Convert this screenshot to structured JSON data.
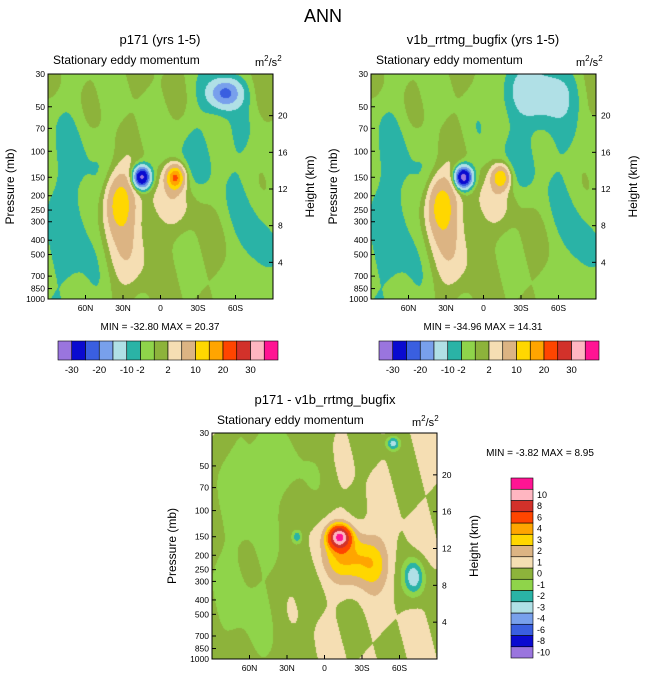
{
  "title": "ANN",
  "units": {
    "base": "m",
    "exp": "2",
    "den": "/s",
    "den_exp": "2"
  },
  "chart_data": [
    {
      "type": "heatmap",
      "title": "p171 (yrs 1-5)",
      "subtitle": "Stationary eddy momentum",
      "ylabel": "Pressure (mb)",
      "ylabel_right": "Height (km)",
      "y_ticks": [
        30,
        50,
        70,
        100,
        150,
        200,
        250,
        300,
        400,
        500,
        700,
        850,
        1000
      ],
      "y_tick_labels": [
        "30",
        "50",
        "70",
        "100",
        "150",
        "200",
        "250",
        "300",
        "400",
        "500",
        "700",
        "850",
        "1000"
      ],
      "height_ticks": [
        4,
        8,
        12,
        16,
        20
      ],
      "x_ticks": [
        60,
        30,
        0,
        -30,
        -60
      ],
      "x_tick_labels": [
        "60N",
        "30N",
        "0",
        "30S",
        "60S"
      ],
      "xlim": [
        90,
        -90
      ],
      "ylim": [
        1000,
        30
      ],
      "min_label": "MIN = -32.80",
      "max_label": "MAX =  20.37",
      "levels": [
        -30,
        -20,
        -15,
        -10,
        -5,
        -2,
        0,
        2,
        5,
        10,
        15,
        20,
        25,
        30
      ],
      "level_labels": [
        "-30",
        "-20",
        "-10",
        "-2",
        "2",
        "10",
        "20",
        "30"
      ],
      "colors": [
        "#9a75de",
        "#0a0ad0",
        "#3a5fe0",
        "#78a0ec",
        "#b0e0e6",
        "#2ab3a6",
        "#8fd44a",
        "#8db33b",
        "#f5deb3",
        "#dcb483",
        "#ffd700",
        "#ffa500",
        "#ff4500",
        "#d2312a",
        "#ffb6c1",
        "#ff1493"
      ],
      "features": [
        {
          "lat": -12,
          "p": 150,
          "value": 20.4,
          "sx": 5,
          "sy": 0.13
        },
        {
          "lat": -8,
          "p": 220,
          "value": 3.5,
          "sx": 16,
          "sy": 0.28
        },
        {
          "lat": 15,
          "p": 150,
          "value": -32.8,
          "sx": 4.5,
          "sy": 0.11
        },
        {
          "lat": 33,
          "p": 220,
          "value": 13,
          "sx": 8,
          "sy": 0.32
        },
        {
          "lat": 28,
          "p": 450,
          "value": 4,
          "sx": 14,
          "sy": 0.5
        },
        {
          "lat": -52,
          "p": 40,
          "value": -16,
          "sx": 9,
          "sy": 0.16
        },
        {
          "lat": 70,
          "p": 300,
          "value": -3.5,
          "sx": 18,
          "sy": 1.2
        },
        {
          "lat": -40,
          "p": 100,
          "value": -2.5,
          "sx": 25,
          "sy": 0.6
        },
        {
          "lat": -75,
          "p": 500,
          "value": -3,
          "sx": 10,
          "sy": 0.8
        }
      ]
    },
    {
      "type": "heatmap",
      "title": "v1b_rrtmg_bugfix (yrs 1-5)",
      "subtitle": "Stationary eddy momentum",
      "ylabel": "Pressure (mb)",
      "ylabel_right": "Height (km)",
      "y_ticks": [
        30,
        50,
        70,
        100,
        150,
        200,
        250,
        300,
        400,
        500,
        700,
        850,
        1000
      ],
      "y_tick_labels": [
        "30",
        "50",
        "70",
        "100",
        "150",
        "200",
        "250",
        "300",
        "400",
        "500",
        "700",
        "850",
        "1000"
      ],
      "height_ticks": [
        4,
        8,
        12,
        16,
        20
      ],
      "x_ticks": [
        60,
        30,
        0,
        -30,
        -60
      ],
      "x_tick_labels": [
        "60N",
        "30N",
        "0",
        "30S",
        "60S"
      ],
      "xlim": [
        90,
        -90
      ],
      "ylim": [
        1000,
        30
      ],
      "min_label": "MIN = -34.96",
      "max_label": "MAX =  14.31",
      "levels": [
        -30,
        -20,
        -15,
        -10,
        -5,
        -2,
        0,
        2,
        5,
        10,
        15,
        20,
        25,
        30
      ],
      "level_labels": [
        "-30",
        "-20",
        "-10",
        "-2",
        "2",
        "10",
        "20",
        "30"
      ],
      "colors": [
        "#9a75de",
        "#0a0ad0",
        "#3a5fe0",
        "#78a0ec",
        "#b0e0e6",
        "#2ab3a6",
        "#8fd44a",
        "#8db33b",
        "#f5deb3",
        "#dcb483",
        "#ffd700",
        "#ffa500",
        "#ff4500",
        "#d2312a",
        "#ffb6c1",
        "#ff1493"
      ],
      "features": [
        {
          "lat": -14,
          "p": 150,
          "value": 14.3,
          "sx": 5,
          "sy": 0.13
        },
        {
          "lat": -8,
          "p": 220,
          "value": 3,
          "sx": 14,
          "sy": 0.28
        },
        {
          "lat": 16,
          "p": 150,
          "value": -35,
          "sx": 4.5,
          "sy": 0.11
        },
        {
          "lat": 34,
          "p": 230,
          "value": 13,
          "sx": 8,
          "sy": 0.32
        },
        {
          "lat": 28,
          "p": 450,
          "value": 4,
          "sx": 14,
          "sy": 0.5
        },
        {
          "lat": -45,
          "p": 40,
          "value": -8,
          "sx": 20,
          "sy": 0.3
        },
        {
          "lat": 70,
          "p": 300,
          "value": -3.5,
          "sx": 18,
          "sy": 1.2
        },
        {
          "lat": -40,
          "p": 100,
          "value": -2.5,
          "sx": 25,
          "sy": 0.6
        },
        {
          "lat": -75,
          "p": 500,
          "value": -3,
          "sx": 10,
          "sy": 0.8
        }
      ]
    },
    {
      "type": "heatmap",
      "title": "p171 - v1b_rrtmg_bugfix",
      "subtitle": "Stationary eddy momentum",
      "ylabel": "Pressure (mb)",
      "ylabel_right": "Height (km)",
      "y_ticks": [
        30,
        50,
        70,
        100,
        150,
        200,
        250,
        300,
        400,
        500,
        700,
        850,
        1000
      ],
      "y_tick_labels": [
        "30",
        "50",
        "70",
        "100",
        "150",
        "200",
        "250",
        "300",
        "400",
        "500",
        "700",
        "850",
        "1000"
      ],
      "height_ticks": [
        4,
        8,
        12,
        16,
        20
      ],
      "x_ticks": [
        60,
        30,
        0,
        -30,
        -60
      ],
      "x_tick_labels": [
        "60N",
        "30N",
        "0",
        "30S",
        "60S"
      ],
      "xlim": [
        90,
        -90
      ],
      "ylim": [
        1000,
        30
      ],
      "min_label": "MIN =  -3.82",
      "max_label": "MAX =   8.95",
      "levels": [
        -10,
        -8,
        -6,
        -4,
        -3,
        -2,
        -1,
        0,
        1,
        2,
        3,
        4,
        6,
        8,
        10
      ],
      "level_labels": [
        "-10",
        "-8",
        "-6",
        "-4",
        "-3",
        "-2",
        "-1",
        "0",
        "1",
        "2",
        "3",
        "4",
        "6",
        "8",
        "10"
      ],
      "colors": [
        "#9a75de",
        "#0a0ad0",
        "#3a5fe0",
        "#78a0ec",
        "#b0e0e6",
        "#2ab3a6",
        "#8fd44a",
        "#8db33b",
        "#f5deb3",
        "#dcb483",
        "#ffd700",
        "#ffa500",
        "#ff4500",
        "#d2312a",
        "#ffb6c1",
        "#ff1493"
      ],
      "features": [
        {
          "lat": -12,
          "p": 150,
          "value": 9,
          "sx": 6,
          "sy": 0.12
        },
        {
          "lat": -18,
          "p": 200,
          "value": 3,
          "sx": 14,
          "sy": 0.3
        },
        {
          "lat": -40,
          "p": 230,
          "value": 2,
          "sx": 10,
          "sy": 0.28
        },
        {
          "lat": 22,
          "p": 150,
          "value": -2.6,
          "sx": 3,
          "sy": 0.08
        },
        {
          "lat": -72,
          "p": 280,
          "value": -3.8,
          "sx": 6,
          "sy": 0.2
        },
        {
          "lat": -55,
          "p": 35,
          "value": -3.5,
          "sx": 4,
          "sy": 0.08
        },
        {
          "lat": 65,
          "p": 300,
          "value": -1.3,
          "sx": 25,
          "sy": 1.5
        },
        {
          "lat": 40,
          "p": 50,
          "value": -1.2,
          "sx": 30,
          "sy": 0.5
        }
      ]
    }
  ]
}
